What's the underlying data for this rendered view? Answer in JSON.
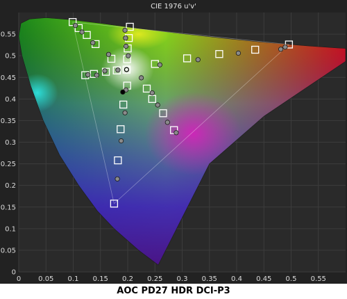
{
  "caption": "AOC PD27 HDR DCI-P3",
  "chart_data": {
    "type": "scatter",
    "title": "CIE 1976 u'v'",
    "xlabel": "",
    "ylabel": "",
    "xlim": [
      0,
      0.6
    ],
    "ylim": [
      0,
      0.6
    ],
    "x_ticks": [
      "0",
      "0.05",
      "0.1",
      "0.15",
      "0.2",
      "0.25",
      "0.3",
      "0.35",
      "0.4",
      "0.45",
      "0.5",
      "0.55"
    ],
    "y_ticks": [
      "0",
      "0.05",
      "0.1",
      "0.15",
      "0.2",
      "0.25",
      "0.3",
      "0.35",
      "0.4",
      "0.45",
      "0.5",
      "0.55"
    ],
    "grid": true,
    "background": "#2a2a2a",
    "gamut_triangle": {
      "red": [
        0.496,
        0.526
      ],
      "green": [
        0.099,
        0.578
      ],
      "blue": [
        0.175,
        0.158
      ]
    },
    "white_point": [
      0.198,
      0.468
    ],
    "series": [
      {
        "marker": "square",
        "color": "#ffffff",
        "points": [
          [
            0.099,
            0.578
          ],
          [
            0.11,
            0.564
          ],
          [
            0.125,
            0.548
          ],
          [
            0.141,
            0.527
          ],
          [
            0.17,
            0.493
          ],
          [
            0.204,
            0.567
          ],
          [
            0.202,
            0.541
          ],
          [
            0.2,
            0.517
          ],
          [
            0.199,
            0.492
          ],
          [
            0.198,
            0.468
          ],
          [
            0.496,
            0.526
          ],
          [
            0.434,
            0.514
          ],
          [
            0.368,
            0.504
          ],
          [
            0.309,
            0.494
          ],
          [
            0.25,
            0.481
          ],
          [
            0.285,
            0.328
          ],
          [
            0.265,
            0.367
          ],
          [
            0.245,
            0.4
          ],
          [
            0.235,
            0.424
          ],
          [
            0.199,
            0.431
          ],
          [
            0.122,
            0.455
          ],
          [
            0.138,
            0.458
          ],
          [
            0.16,
            0.463
          ],
          [
            0.18,
            0.466
          ],
          [
            0.175,
            0.158
          ],
          [
            0.182,
            0.258
          ],
          [
            0.187,
            0.33
          ],
          [
            0.192,
            0.387
          ]
        ]
      },
      {
        "marker": "circle",
        "color": "#8a8a8a",
        "points": [
          [
            0.104,
            0.57
          ],
          [
            0.116,
            0.555
          ],
          [
            0.136,
            0.53
          ],
          [
            0.165,
            0.503
          ],
          [
            0.195,
            0.559
          ],
          [
            0.196,
            0.541
          ],
          [
            0.197,
            0.522
          ],
          [
            0.201,
            0.5
          ],
          [
            0.489,
            0.52
          ],
          [
            0.481,
            0.515
          ],
          [
            0.403,
            0.506
          ],
          [
            0.329,
            0.491
          ],
          [
            0.259,
            0.479
          ],
          [
            0.225,
            0.449
          ],
          [
            0.245,
            0.414
          ],
          [
            0.255,
            0.386
          ],
          [
            0.273,
            0.346
          ],
          [
            0.289,
            0.322
          ],
          [
            0.127,
            0.456
          ],
          [
            0.143,
            0.455
          ],
          [
            0.158,
            0.465
          ],
          [
            0.182,
            0.467
          ],
          [
            0.197,
            0.421
          ],
          [
            0.195,
            0.368
          ],
          [
            0.188,
            0.303
          ],
          [
            0.181,
            0.215
          ]
        ]
      },
      {
        "marker": "circle",
        "color": "#000000",
        "points": [
          [
            0.191,
            0.416
          ]
        ]
      }
    ]
  }
}
